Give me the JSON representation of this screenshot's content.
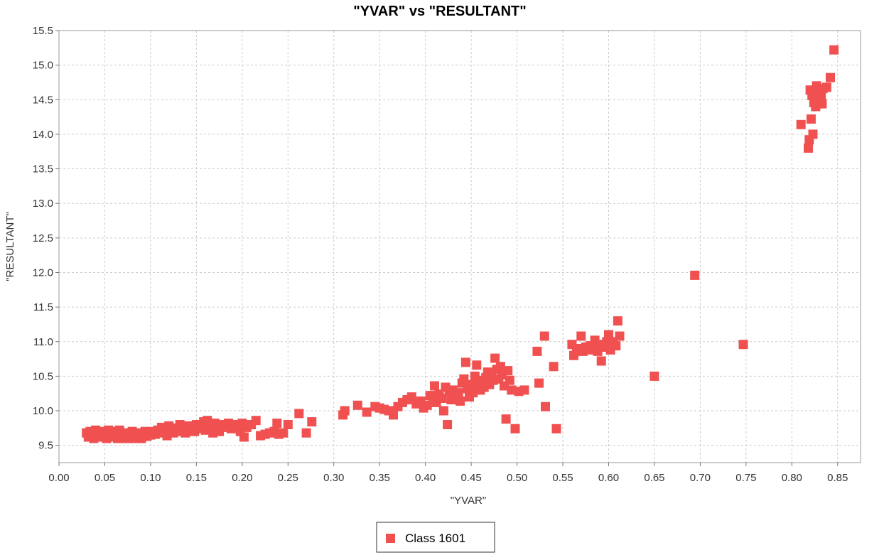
{
  "chart_data": {
    "type": "scatter",
    "title": "\"YVAR\" vs \"RESULTANT\"",
    "xlabel": "\"YVAR\"",
    "ylabel": "\"RESULTANT\"",
    "xlim": [
      0.0,
      0.875
    ],
    "ylim": [
      9.25,
      15.5
    ],
    "x_ticks": [
      0.0,
      0.05,
      0.1,
      0.15,
      0.2,
      0.25,
      0.3,
      0.35,
      0.4,
      0.45,
      0.5,
      0.55,
      0.6,
      0.65,
      0.7,
      0.75,
      0.8,
      0.85
    ],
    "x_tick_labels": [
      "0.00",
      "0.05",
      "0.10",
      "0.15",
      "0.20",
      "0.25",
      "0.30",
      "0.35",
      "0.40",
      "0.45",
      "0.50",
      "0.55",
      "0.60",
      "0.65",
      "0.70",
      "0.75",
      "0.80",
      "0.85"
    ],
    "y_ticks": [
      9.5,
      10.0,
      10.5,
      11.0,
      11.5,
      12.0,
      12.5,
      13.0,
      13.5,
      14.0,
      14.5,
      15.0,
      15.5
    ],
    "y_tick_labels": [
      "9.5",
      "10.0",
      "10.5",
      "11.0",
      "11.5",
      "12.0",
      "12.5",
      "13.0",
      "13.5",
      "14.0",
      "14.5",
      "15.0",
      "15.5"
    ],
    "grid": true,
    "legend": {
      "placement": "bottom-center"
    },
    "series": [
      {
        "name": "Class 1601",
        "color": "#f05050",
        "marker": "square",
        "points": [
          [
            0.03,
            9.68
          ],
          [
            0.032,
            9.62
          ],
          [
            0.034,
            9.7
          ],
          [
            0.036,
            9.65
          ],
          [
            0.038,
            9.6
          ],
          [
            0.04,
            9.72
          ],
          [
            0.042,
            9.66
          ],
          [
            0.044,
            9.63
          ],
          [
            0.046,
            9.7
          ],
          [
            0.048,
            9.62
          ],
          [
            0.05,
            9.68
          ],
          [
            0.052,
            9.6
          ],
          [
            0.054,
            9.72
          ],
          [
            0.056,
            9.65
          ],
          [
            0.058,
            9.62
          ],
          [
            0.06,
            9.7
          ],
          [
            0.062,
            9.66
          ],
          [
            0.064,
            9.6
          ],
          [
            0.066,
            9.72
          ],
          [
            0.068,
            9.64
          ],
          [
            0.07,
            9.62
          ],
          [
            0.072,
            9.68
          ],
          [
            0.074,
            9.6
          ],
          [
            0.076,
            9.66
          ],
          [
            0.078,
            9.63
          ],
          [
            0.08,
            9.7
          ],
          [
            0.082,
            9.6
          ],
          [
            0.084,
            9.65
          ],
          [
            0.086,
            9.62
          ],
          [
            0.088,
            9.68
          ],
          [
            0.09,
            9.6
          ],
          [
            0.092,
            9.66
          ],
          [
            0.094,
            9.7
          ],
          [
            0.096,
            9.63
          ],
          [
            0.098,
            9.68
          ],
          [
            0.1,
            9.65
          ],
          [
            0.102,
            9.7
          ],
          [
            0.105,
            9.66
          ],
          [
            0.108,
            9.72
          ],
          [
            0.11,
            9.68
          ],
          [
            0.112,
            9.76
          ],
          [
            0.115,
            9.7
          ],
          [
            0.118,
            9.64
          ],
          [
            0.12,
            9.78
          ],
          [
            0.122,
            9.72
          ],
          [
            0.125,
            9.68
          ],
          [
            0.128,
            9.75
          ],
          [
            0.13,
            9.7
          ],
          [
            0.132,
            9.8
          ],
          [
            0.135,
            9.74
          ],
          [
            0.138,
            9.68
          ],
          [
            0.14,
            9.78
          ],
          [
            0.142,
            9.72
          ],
          [
            0.145,
            9.76
          ],
          [
            0.148,
            9.7
          ],
          [
            0.15,
            9.8
          ],
          [
            0.152,
            9.74
          ],
          [
            0.155,
            9.78
          ],
          [
            0.158,
            9.84
          ],
          [
            0.16,
            9.72
          ],
          [
            0.162,
            9.86
          ],
          [
            0.165,
            9.78
          ],
          [
            0.168,
            9.68
          ],
          [
            0.17,
            9.82
          ],
          [
            0.172,
            9.75
          ],
          [
            0.175,
            9.7
          ],
          [
            0.178,
            9.8
          ],
          [
            0.182,
            9.76
          ],
          [
            0.185,
            9.82
          ],
          [
            0.188,
            9.74
          ],
          [
            0.192,
            9.8
          ],
          [
            0.195,
            9.78
          ],
          [
            0.198,
            9.7
          ],
          [
            0.2,
            9.82
          ],
          [
            0.202,
            9.62
          ],
          [
            0.205,
            9.76
          ],
          [
            0.21,
            9.8
          ],
          [
            0.215,
            9.86
          ],
          [
            0.22,
            9.64
          ],
          [
            0.225,
            9.66
          ],
          [
            0.23,
            9.68
          ],
          [
            0.235,
            9.7
          ],
          [
            0.238,
            9.82
          ],
          [
            0.24,
            9.66
          ],
          [
            0.245,
            9.68
          ],
          [
            0.25,
            9.8
          ],
          [
            0.262,
            9.96
          ],
          [
            0.27,
            9.68
          ],
          [
            0.276,
            9.84
          ],
          [
            0.31,
            9.94
          ],
          [
            0.312,
            10.0
          ],
          [
            0.326,
            10.08
          ],
          [
            0.336,
            9.98
          ],
          [
            0.345,
            10.06
          ],
          [
            0.35,
            10.04
          ],
          [
            0.355,
            10.02
          ],
          [
            0.36,
            10.0
          ],
          [
            0.365,
            9.94
          ],
          [
            0.37,
            10.06
          ],
          [
            0.375,
            10.12
          ],
          [
            0.38,
            10.16
          ],
          [
            0.385,
            10.2
          ],
          [
            0.39,
            10.1
          ],
          [
            0.395,
            10.14
          ],
          [
            0.398,
            10.04
          ],
          [
            0.402,
            10.08
          ],
          [
            0.405,
            10.22
          ],
          [
            0.408,
            10.16
          ],
          [
            0.41,
            10.36
          ],
          [
            0.412,
            10.12
          ],
          [
            0.415,
            10.24
          ],
          [
            0.418,
            10.18
          ],
          [
            0.42,
            10.0
          ],
          [
            0.422,
            10.34
          ],
          [
            0.424,
            9.8
          ],
          [
            0.426,
            10.28
          ],
          [
            0.428,
            10.16
          ],
          [
            0.43,
            10.3
          ],
          [
            0.432,
            10.22
          ],
          [
            0.434,
            10.18
          ],
          [
            0.436,
            10.26
          ],
          [
            0.438,
            10.14
          ],
          [
            0.44,
            10.4
          ],
          [
            0.442,
            10.46
          ],
          [
            0.444,
            10.7
          ],
          [
            0.446,
            10.32
          ],
          [
            0.448,
            10.2
          ],
          [
            0.45,
            10.38
          ],
          [
            0.452,
            10.26
          ],
          [
            0.454,
            10.5
          ],
          [
            0.456,
            10.66
          ],
          [
            0.458,
            10.4
          ],
          [
            0.46,
            10.3
          ],
          [
            0.462,
            10.44
          ],
          [
            0.464,
            10.34
          ],
          [
            0.466,
            10.48
          ],
          [
            0.468,
            10.56
          ],
          [
            0.47,
            10.38
          ],
          [
            0.472,
            10.5
          ],
          [
            0.474,
            10.44
          ],
          [
            0.476,
            10.76
          ],
          [
            0.478,
            10.6
          ],
          [
            0.48,
            10.46
          ],
          [
            0.482,
            10.64
          ],
          [
            0.484,
            10.52
          ],
          [
            0.486,
            10.36
          ],
          [
            0.488,
            9.88
          ],
          [
            0.49,
            10.58
          ],
          [
            0.492,
            10.44
          ],
          [
            0.494,
            10.3
          ],
          [
            0.498,
            9.74
          ],
          [
            0.502,
            10.28
          ],
          [
            0.508,
            10.3
          ],
          [
            0.522,
            10.86
          ],
          [
            0.524,
            10.4
          ],
          [
            0.53,
            11.08
          ],
          [
            0.531,
            10.06
          ],
          [
            0.54,
            10.64
          ],
          [
            0.543,
            9.74
          ],
          [
            0.56,
            10.96
          ],
          [
            0.562,
            10.8
          ],
          [
            0.565,
            10.9
          ],
          [
            0.57,
            11.08
          ],
          [
            0.572,
            10.86
          ],
          [
            0.575,
            10.92
          ],
          [
            0.578,
            10.88
          ],
          [
            0.58,
            10.94
          ],
          [
            0.582,
            10.9
          ],
          [
            0.585,
            11.02
          ],
          [
            0.588,
            10.86
          ],
          [
            0.59,
            10.96
          ],
          [
            0.592,
            10.72
          ],
          [
            0.595,
            10.92
          ],
          [
            0.598,
            11.0
          ],
          [
            0.6,
            11.1
          ],
          [
            0.602,
            10.88
          ],
          [
            0.605,
            11.0
          ],
          [
            0.608,
            10.94
          ],
          [
            0.61,
            11.3
          ],
          [
            0.612,
            11.08
          ],
          [
            0.65,
            10.5
          ],
          [
            0.694,
            11.96
          ],
          [
            0.747,
            10.96
          ],
          [
            0.81,
            14.14
          ],
          [
            0.818,
            13.8
          ],
          [
            0.819,
            13.92
          ],
          [
            0.82,
            14.64
          ],
          [
            0.821,
            14.22
          ],
          [
            0.822,
            14.56
          ],
          [
            0.823,
            14.0
          ],
          [
            0.824,
            14.46
          ],
          [
            0.825,
            14.62
          ],
          [
            0.826,
            14.4
          ],
          [
            0.827,
            14.7
          ],
          [
            0.828,
            14.52
          ],
          [
            0.829,
            14.44
          ],
          [
            0.83,
            14.6
          ],
          [
            0.831,
            14.48
          ],
          [
            0.832,
            14.56
          ],
          [
            0.833,
            14.44
          ],
          [
            0.834,
            14.66
          ],
          [
            0.838,
            14.68
          ],
          [
            0.842,
            14.82
          ],
          [
            0.846,
            15.22
          ]
        ]
      }
    ]
  }
}
